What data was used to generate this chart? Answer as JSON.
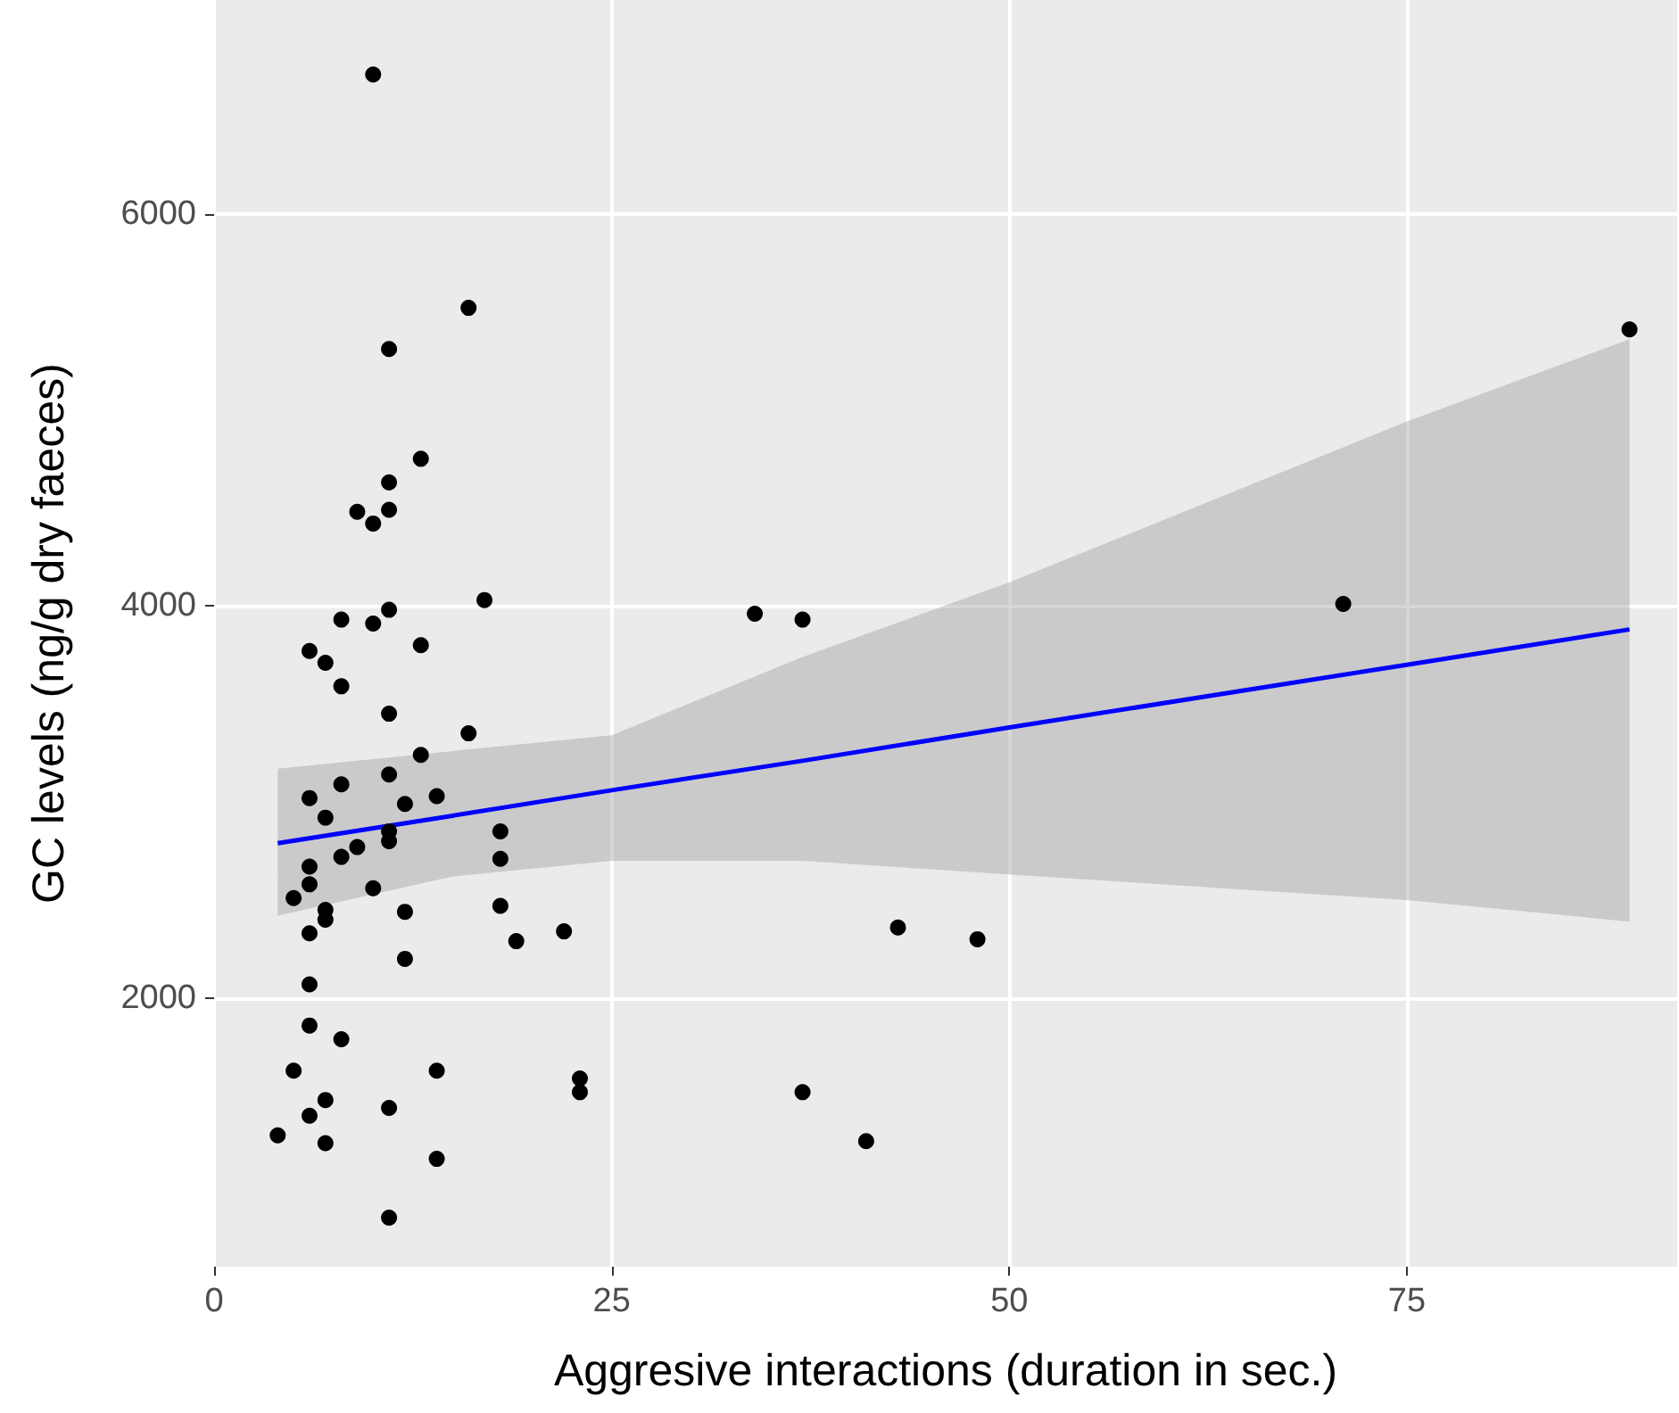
{
  "chart_data": {
    "type": "scatter",
    "xlabel": "Aggresive interactions (duration in sec.)",
    "ylabel": "GC levels (ng/g dry faeces)",
    "xlim": [
      0,
      92
    ],
    "xticks": [
      0,
      25,
      50,
      75
    ],
    "ylim": [
      630,
      7090
    ],
    "yticks": [
      2000,
      4000,
      6000
    ],
    "grid": true,
    "series": [
      {
        "marker": "circle",
        "color": "#000000",
        "x": [
          10,
          16,
          11,
          13,
          11,
          9,
          11,
          10,
          17,
          11,
          8,
          10,
          13,
          6,
          7,
          8,
          11,
          16,
          13,
          11,
          8,
          14,
          6,
          12,
          7,
          11,
          11,
          9,
          8,
          6,
          18,
          18,
          6,
          10,
          5,
          7,
          7,
          12,
          18,
          6,
          19,
          12,
          6,
          6,
          8,
          5,
          14,
          7,
          6,
          4,
          7,
          11,
          14,
          11,
          23,
          23,
          22,
          34,
          37,
          37,
          41,
          43,
          48,
          71,
          89
        ],
        "values": [
          6710,
          5520,
          5310,
          4750,
          4630,
          4480,
          4490,
          4420,
          4030,
          3980,
          3930,
          3910,
          3800,
          3770,
          3710,
          3590,
          3450,
          3350,
          3240,
          3140,
          3090,
          3030,
          3020,
          2990,
          2920,
          2850,
          2800,
          2770,
          2720,
          2670,
          2850,
          2710,
          2580,
          2560,
          2510,
          2450,
          2400,
          2440,
          2470,
          2330,
          2290,
          2200,
          2070,
          1860,
          1790,
          1630,
          1630,
          1480,
          1400,
          1300,
          1260,
          1440,
          1180,
          880,
          1590,
          1520,
          2340,
          3960,
          3930,
          1520,
          1270,
          2360,
          2300,
          4010,
          5410
        ]
      },
      {
        "type": "line",
        "color": "#0000ff",
        "x": [
          4,
          15,
          25,
          37,
          50,
          75,
          89
        ],
        "values": [
          2790,
          2930,
          3060,
          3210,
          3380,
          3700,
          3880
        ],
        "lower": [
          2420,
          2620,
          2700,
          2700,
          2630,
          2500,
          2390
        ],
        "upper": [
          3170,
          3260,
          3340,
          3740,
          4120,
          4940,
          5360
        ]
      }
    ]
  }
}
